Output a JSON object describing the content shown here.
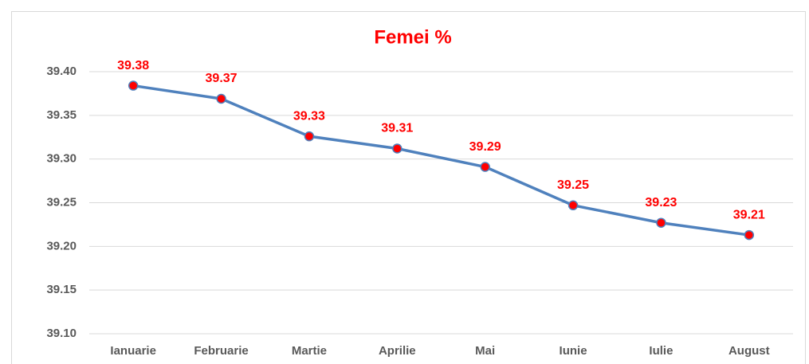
{
  "chart_data": {
    "type": "line",
    "title": "Femei %",
    "categories": [
      "Ianuarie",
      "Februarie",
      "Martie",
      "Aprilie",
      "Mai",
      "Iunie",
      "Iulie",
      "August"
    ],
    "series": [
      {
        "name": "Femei %",
        "color": "#4f81bd",
        "marker_color": "#ff0000",
        "values": [
          39.384,
          39.369,
          39.326,
          39.312,
          39.291,
          39.247,
          39.227,
          39.213
        ],
        "value_labels": [
          "39.38",
          "39.37",
          "39.33",
          "39.31",
          "39.29",
          "39.25",
          "39.23",
          "39.21"
        ]
      }
    ],
    "ylim": [
      39.1,
      39.4
    ],
    "yticks": [
      {
        "value": 39.1,
        "label": "39.10"
      },
      {
        "value": 39.15,
        "label": "39.15"
      },
      {
        "value": 39.2,
        "label": "39.20"
      },
      {
        "value": 39.25,
        "label": "39.25"
      },
      {
        "value": 39.3,
        "label": "39.30"
      },
      {
        "value": 39.35,
        "label": "39.35"
      },
      {
        "value": 39.4,
        "label": "39.40"
      }
    ],
    "grid": true
  }
}
